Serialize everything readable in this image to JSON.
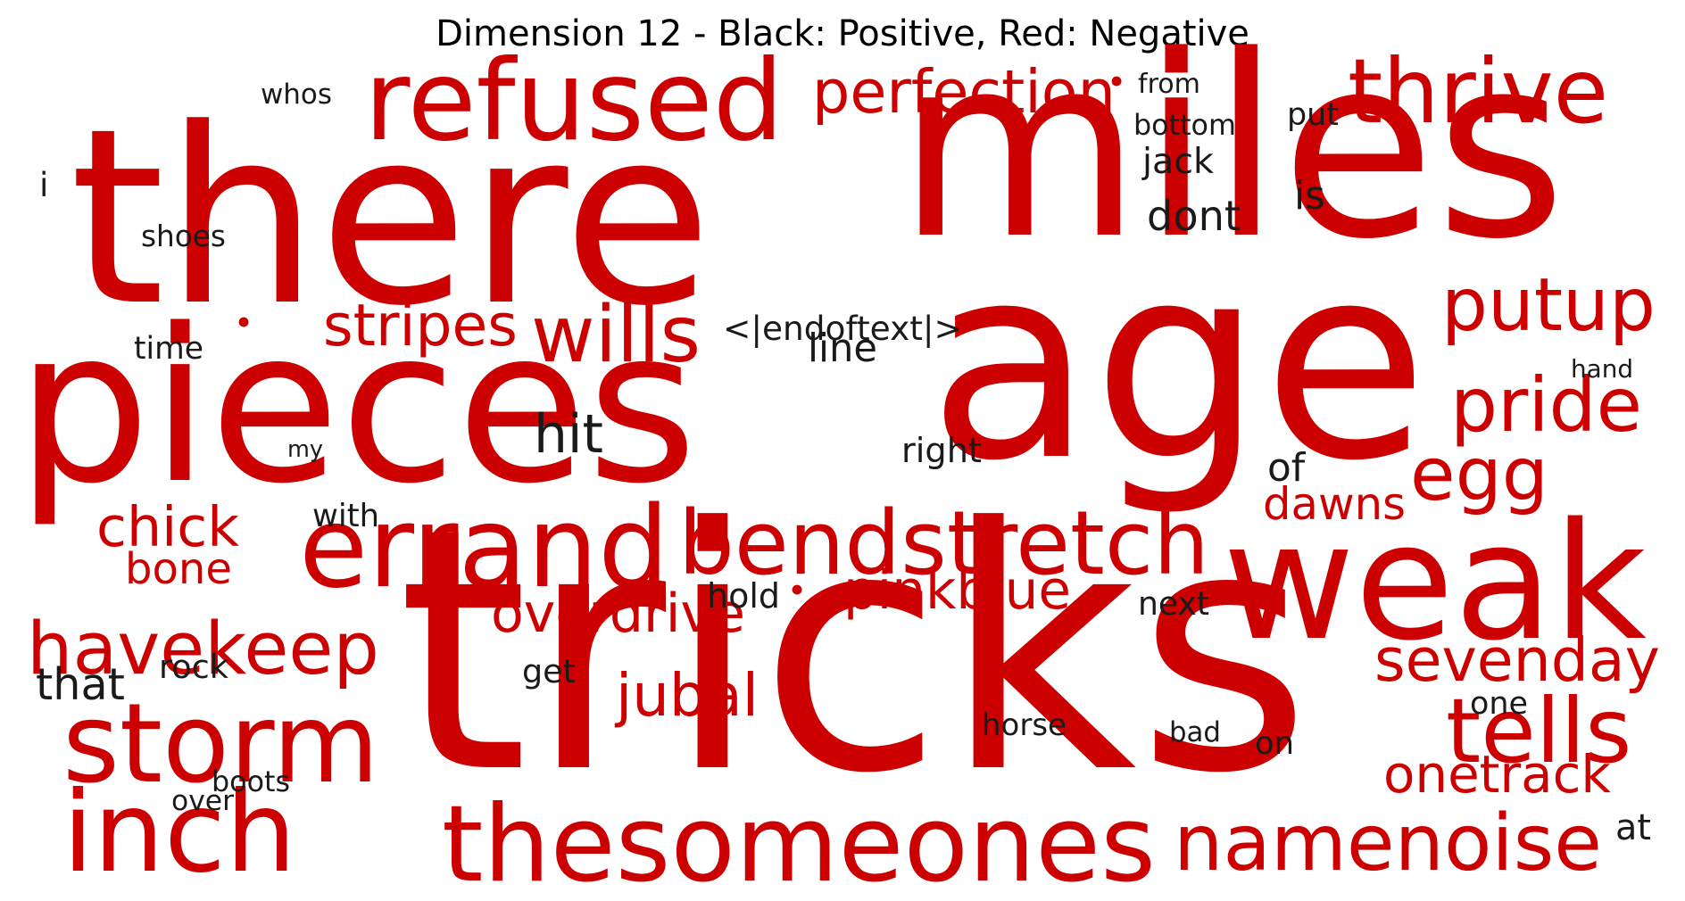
{
  "title": "Dimension 12 - Black: Positive, Red: Negative",
  "colors": {
    "positive": "#1a1a1a",
    "negative": "#cc0000"
  },
  "words": [
    {
      "text": "there",
      "polarity": "negative"
    },
    {
      "text": "miles",
      "polarity": "negative"
    },
    {
      "text": "age",
      "polarity": "negative"
    },
    {
      "text": "pieces",
      "polarity": "negative"
    },
    {
      "text": "tricks",
      "polarity": "negative"
    },
    {
      "text": "weak",
      "polarity": "negative"
    },
    {
      "text": "refused",
      "polarity": "negative"
    },
    {
      "text": "perfection",
      "polarity": "negative"
    },
    {
      "text": "thrive",
      "polarity": "negative"
    },
    {
      "text": "putup",
      "polarity": "negative"
    },
    {
      "text": "pride",
      "polarity": "negative"
    },
    {
      "text": "egg",
      "polarity": "negative"
    },
    {
      "text": "dawns",
      "polarity": "negative"
    },
    {
      "text": "wills",
      "polarity": "negative"
    },
    {
      "text": "stripes",
      "polarity": "negative"
    },
    {
      "text": "errand",
      "polarity": "negative"
    },
    {
      "text": "bendstretch",
      "polarity": "negative"
    },
    {
      "text": "chick",
      "polarity": "negative"
    },
    {
      "text": "bone",
      "polarity": "negative"
    },
    {
      "text": "havekeep",
      "polarity": "negative"
    },
    {
      "text": "overdrive",
      "polarity": "negative"
    },
    {
      "text": "pinkblue",
      "polarity": "negative"
    },
    {
      "text": "sevenday",
      "polarity": "negative"
    },
    {
      "text": "storm",
      "polarity": "negative"
    },
    {
      "text": "jubal",
      "polarity": "negative"
    },
    {
      "text": "tells",
      "polarity": "negative"
    },
    {
      "text": "onetrack",
      "polarity": "negative"
    },
    {
      "text": "inch",
      "polarity": "negative"
    },
    {
      "text": "thesomeones",
      "polarity": "negative"
    },
    {
      "text": "namenoise",
      "polarity": "negative"
    },
    {
      "text": "•",
      "polarity": "negative"
    },
    {
      "text": "•",
      "polarity": "negative"
    },
    {
      "text": "•",
      "polarity": "negative"
    },
    {
      "text": "whos",
      "polarity": "positive"
    },
    {
      "text": "i",
      "polarity": "positive"
    },
    {
      "text": "shoes",
      "polarity": "positive"
    },
    {
      "text": "from",
      "polarity": "positive"
    },
    {
      "text": "bottom",
      "polarity": "positive"
    },
    {
      "text": "put",
      "polarity": "positive"
    },
    {
      "text": "jack",
      "polarity": "positive"
    },
    {
      "text": "is",
      "polarity": "positive"
    },
    {
      "text": "dont",
      "polarity": "positive"
    },
    {
      "text": "time",
      "polarity": "positive"
    },
    {
      "text": "<|endoftext|>",
      "polarity": "positive"
    },
    {
      "text": "line",
      "polarity": "positive"
    },
    {
      "text": "hand",
      "polarity": "positive"
    },
    {
      "text": "hit",
      "polarity": "positive"
    },
    {
      "text": "my",
      "polarity": "positive"
    },
    {
      "text": "right",
      "polarity": "positive"
    },
    {
      "text": "of",
      "polarity": "positive"
    },
    {
      "text": "with",
      "polarity": "positive"
    },
    {
      "text": "hold",
      "polarity": "positive"
    },
    {
      "text": "next",
      "polarity": "positive"
    },
    {
      "text": "that",
      "polarity": "positive"
    },
    {
      "text": "rock",
      "polarity": "positive"
    },
    {
      "text": "get",
      "polarity": "positive"
    },
    {
      "text": "one",
      "polarity": "positive"
    },
    {
      "text": "horse",
      "polarity": "positive"
    },
    {
      "text": "bad",
      "polarity": "positive"
    },
    {
      "text": "on",
      "polarity": "positive"
    },
    {
      "text": "boots",
      "polarity": "positive"
    },
    {
      "text": "over",
      "polarity": "positive"
    },
    {
      "text": "at",
      "polarity": "positive"
    }
  ]
}
